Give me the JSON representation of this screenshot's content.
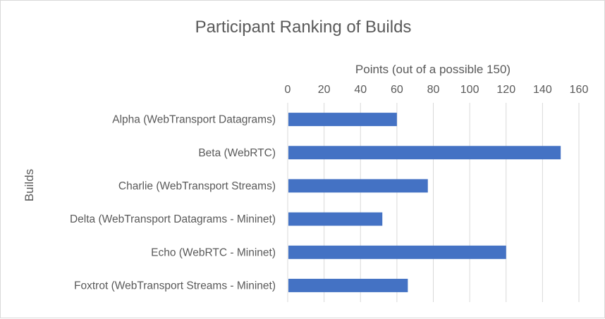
{
  "chart_data": {
    "type": "bar",
    "orientation": "horizontal",
    "title": "Participant Ranking of Builds",
    "xlabel": "Points (out of a possible 150)",
    "ylabel": "Builds",
    "x_axis_position": "top",
    "xlim": [
      0,
      160
    ],
    "xticks": [
      0,
      20,
      40,
      60,
      80,
      100,
      120,
      140,
      160
    ],
    "grid": true,
    "legend": "none",
    "categories": [
      "Alpha (WebTransport Datagrams)",
      "Beta (WebRTC)",
      "Charlie (WebTransport Streams)",
      "Delta (WebTransport Datagrams  - Mininet)",
      "Echo (WebRTC - Mininet)",
      "Foxtrot (WebTransport Streams - Mininet)"
    ],
    "values": [
      60,
      150,
      77,
      52,
      120,
      66
    ],
    "colors": {
      "bar": "#4472c4",
      "grid": "#d9d9d9",
      "text": "#595959"
    }
  }
}
